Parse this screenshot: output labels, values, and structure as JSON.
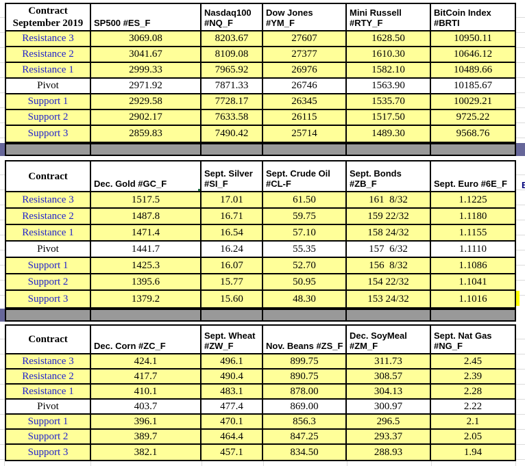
{
  "sheet": {
    "row_labels": [
      "Resistance 3",
      "Resistance 2",
      "Resistance 1",
      "Pivot",
      "Support 1",
      "Support 2",
      "Support 3"
    ],
    "edge_fragment": "B",
    "colors": {
      "cell_yellow": "#FFFF99",
      "separator_gray": "#999999",
      "edge_slate": "#666699",
      "label_blue": "#2222CC",
      "selection_green": "#217346",
      "highlight_yellow": "#FFFF00",
      "border_black": "#000000"
    },
    "tables": [
      {
        "name": "index-futures-table",
        "corner": [
          "Contract",
          "September 2019"
        ],
        "columns": [
          {
            "lines": [
              "SP500 #ES_F"
            ]
          },
          {
            "lines": [
              "Nasdaq100",
              "#NQ_F"
            ]
          },
          {
            "lines": [
              "Dow Jones",
              "#YM_F"
            ]
          },
          {
            "lines": [
              "Mini Russell",
              "#RTY_F"
            ]
          },
          {
            "lines": [
              "BitCoin Index",
              "#BRTI"
            ]
          }
        ],
        "rows": [
          {
            "label": "Resistance 3",
            "values": [
              "3069.08",
              "8203.67",
              "27607",
              "1628.50",
              "10950.11"
            ]
          },
          {
            "label": "Resistance 2",
            "values": [
              "3041.67",
              "8109.08",
              "27377",
              "1610.30",
              "10646.12"
            ]
          },
          {
            "label": "Resistance 1",
            "values": [
              "2999.33",
              "7965.92",
              "26976",
              "1582.10",
              "10489.66"
            ]
          },
          {
            "label": "Pivot",
            "values": [
              "2971.92",
              "7871.33",
              "26746",
              "1563.90",
              "10185.67"
            ]
          },
          {
            "label": "Support 1",
            "values": [
              "2929.58",
              "7728.17",
              "26345",
              "1535.70",
              "10029.21"
            ]
          },
          {
            "label": "Support 2",
            "values": [
              "2902.17",
              "7633.58",
              "26115",
              "1517.50",
              "9725.22"
            ]
          },
          {
            "label": "Support 3",
            "values": [
              "2859.83",
              "7490.42",
              "25714",
              "1489.30",
              "9568.76"
            ]
          }
        ]
      },
      {
        "name": "metals-energy-table",
        "corner": [
          "Contract"
        ],
        "columns": [
          {
            "lines": [
              "Dec. Gold #GC_F"
            ],
            "selected": true
          },
          {
            "lines": [
              "Sept. Silver",
              "#SI_F"
            ]
          },
          {
            "lines": [
              "Sept. Crude Oil",
              "#CL-F"
            ]
          },
          {
            "lines": [
              "Sept. Bonds",
              "#ZB_F"
            ]
          },
          {
            "lines": [
              "Sept. Euro #6E_F"
            ]
          }
        ],
        "rows": [
          {
            "label": "Resistance 3",
            "values": [
              "1517.5",
              "17.01",
              "61.50",
              "161  8/32",
              "1.1225"
            ]
          },
          {
            "label": "Resistance 2",
            "values": [
              "1487.8",
              "16.71",
              "59.75",
              "159 22/32",
              "1.1180"
            ]
          },
          {
            "label": "Resistance 1",
            "values": [
              "1471.4",
              "16.54",
              "57.10",
              "158 24/32",
              "1.1155"
            ]
          },
          {
            "label": "Pivot",
            "values": [
              "1441.7",
              "16.24",
              "55.35",
              "157  6/32",
              "1.1110"
            ]
          },
          {
            "label": "Support 1",
            "values": [
              "1425.3",
              "16.07",
              "52.70",
              "156  8/32",
              "1.1086"
            ]
          },
          {
            "label": "Support 2",
            "values": [
              "1395.6",
              "15.77",
              "50.95",
              "154 22/32",
              "1.1041"
            ]
          },
          {
            "label": "Support 3",
            "values": [
              "1379.2",
              "15.60",
              "48.30",
              "153 24/32",
              "1.1016"
            ]
          }
        ]
      },
      {
        "name": "grains-table",
        "corner": [
          "Contract"
        ],
        "columns": [
          {
            "lines": [
              "Dec.  Corn #ZC_F"
            ]
          },
          {
            "lines": [
              "Sept.  Wheat",
              "#ZW_F"
            ]
          },
          {
            "lines": [
              "Nov. Beans #ZS_F"
            ]
          },
          {
            "lines": [
              "Dec.  SoyMeal",
              "#ZM_F"
            ]
          },
          {
            "lines": [
              "Sept. Nat Gas",
              "#NG_F"
            ]
          }
        ],
        "rows": [
          {
            "label": "Resistance 3",
            "values": [
              "424.1",
              "496.1",
              "899.75",
              "311.73",
              "2.45"
            ]
          },
          {
            "label": "Resistance 2",
            "values": [
              "417.7",
              "490.4",
              "890.75",
              "308.57",
              "2.39"
            ]
          },
          {
            "label": "Resistance 1",
            "values": [
              "410.1",
              "483.1",
              "878.00",
              "304.13",
              "2.28"
            ]
          },
          {
            "label": "Pivot",
            "values": [
              "403.7",
              "477.4",
              "869.00",
              "300.97",
              "2.22"
            ]
          },
          {
            "label": "Support 1",
            "values": [
              "396.1",
              "470.1",
              "856.3",
              "296.5",
              "2.1"
            ]
          },
          {
            "label": "Support 2",
            "values": [
              "389.7",
              "464.4",
              "847.25",
              "293.37",
              "2.05"
            ]
          },
          {
            "label": "Support 3",
            "values": [
              "382.1",
              "457.1",
              "834.50",
              "288.93",
              "1.94"
            ]
          }
        ]
      }
    ]
  }
}
